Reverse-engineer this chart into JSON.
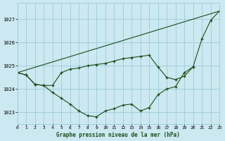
{
  "title": "Graphe pression niveau de la mer (hPa)",
  "background_color": "#cce8f0",
  "plot_bg_color": "#cce8f0",
  "grid_color": "#99ccd9",
  "line_color": "#1a4d1a",
  "xlim": [
    0,
    23
  ],
  "ylim": [
    1022.5,
    1027.7
  ],
  "yticks": [
    1023,
    1024,
    1025,
    1026,
    1027
  ],
  "xticks": [
    0,
    1,
    2,
    3,
    4,
    5,
    6,
    7,
    8,
    9,
    10,
    11,
    12,
    13,
    14,
    15,
    16,
    17,
    18,
    19,
    20,
    21,
    22,
    23
  ],
  "series0_x": [
    0,
    1,
    2,
    3,
    4,
    5,
    6,
    7,
    8,
    9,
    10,
    11,
    12,
    13,
    14,
    15,
    16,
    17,
    18,
    19,
    20,
    21,
    22,
    23
  ],
  "series0_y": [
    1024.7,
    1024.6,
    1024.2,
    1024.15,
    1023.85,
    1023.6,
    1023.35,
    1023.05,
    1022.85,
    1022.8,
    1023.05,
    1023.15,
    1023.3,
    1023.35,
    1023.05,
    1023.2,
    1023.75,
    1024.0,
    1024.1,
    1024.7,
    1024.95,
    1026.15,
    1026.95,
    1027.35
  ],
  "series1_x": [
    0,
    1,
    2,
    3,
    4,
    5,
    6,
    7,
    8,
    9,
    10,
    11,
    12,
    13,
    14,
    15,
    16,
    17,
    18,
    19,
    20
  ],
  "series1_y": [
    1024.7,
    1024.6,
    1024.2,
    1024.15,
    1024.15,
    1024.7,
    1024.85,
    1024.9,
    1025.0,
    1025.05,
    1025.1,
    1025.2,
    1025.3,
    1025.35,
    1025.4,
    1025.45,
    1024.95,
    1024.5,
    1024.4,
    1024.55,
    1024.95
  ],
  "series2_x": [
    0,
    23
  ],
  "series2_y": [
    1024.7,
    1027.35
  ]
}
